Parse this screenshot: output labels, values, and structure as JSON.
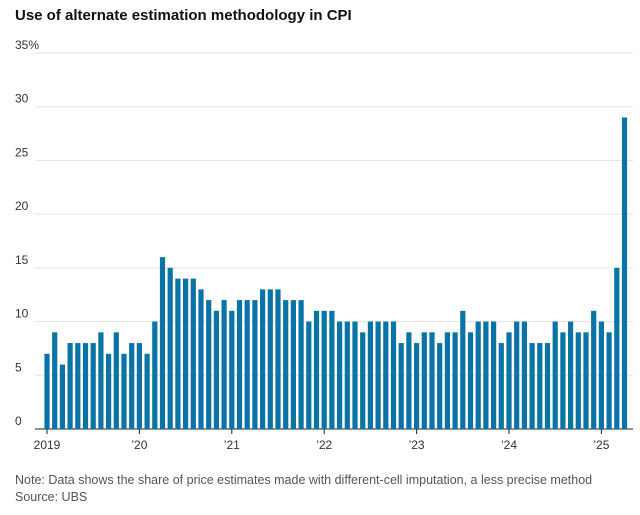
{
  "chart_data": {
    "type": "bar",
    "title": "Use of alternate estimation methodology in CPI",
    "note": "Note: Data shows the share of price estimates made with different-cell imputation, a less precise method",
    "source": "Source: UBS",
    "categories": [
      "2019",
      null,
      null,
      null,
      null,
      null,
      null,
      null,
      null,
      null,
      null,
      null,
      "’20",
      null,
      null,
      null,
      null,
      null,
      null,
      null,
      null,
      null,
      null,
      null,
      "’21",
      null,
      null,
      null,
      null,
      null,
      null,
      null,
      null,
      null,
      null,
      null,
      "’22",
      null,
      null,
      null,
      null,
      null,
      null,
      null,
      null,
      null,
      null,
      null,
      "’23",
      null,
      null,
      null,
      null,
      null,
      null,
      null,
      null,
      null,
      null,
      null,
      "’24",
      null,
      null,
      null,
      null,
      null,
      null,
      null,
      null,
      null,
      null,
      null,
      "’25",
      null,
      null,
      null
    ],
    "values": [
      7,
      9,
      6,
      8,
      8,
      8,
      8,
      9,
      7,
      9,
      7,
      8,
      8,
      7,
      10,
      16,
      15,
      14,
      14,
      14,
      13,
      12,
      11,
      12,
      11,
      12,
      12,
      12,
      13,
      13,
      13,
      12,
      12,
      12,
      10,
      11,
      11,
      11,
      10,
      10,
      10,
      9,
      10,
      10,
      10,
      10,
      8,
      9,
      8,
      9,
      9,
      8,
      9,
      9,
      11,
      9,
      10,
      10,
      10,
      8,
      9,
      10,
      10,
      8,
      8,
      8,
      10,
      9,
      10,
      9,
      9,
      11,
      10,
      9,
      15,
      29
    ],
    "color": "#0a74a6",
    "ylim": [
      0,
      35
    ],
    "yticks": [
      0,
      5,
      10,
      15,
      20,
      25,
      30,
      {
        "value": 35,
        "label": "35%"
      }
    ],
    "grid": true
  }
}
